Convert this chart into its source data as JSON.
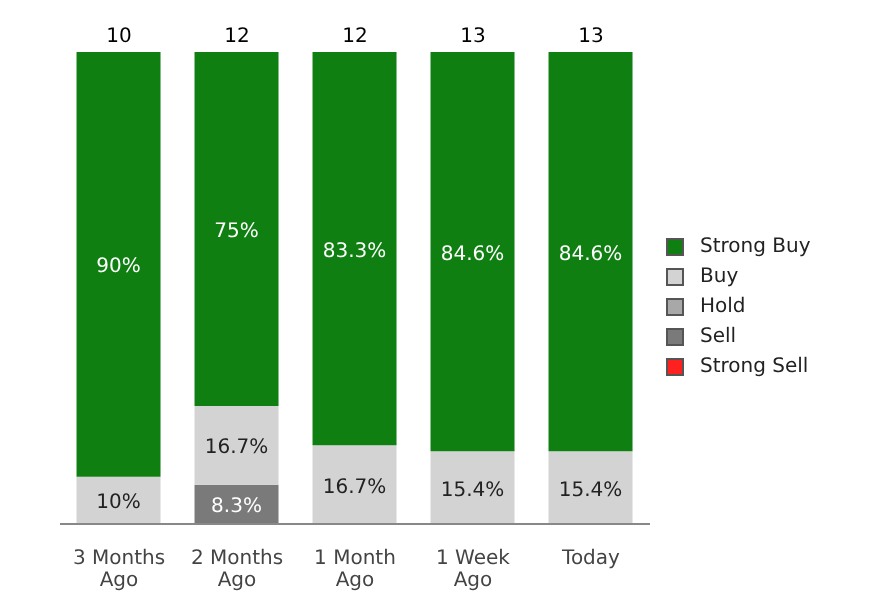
{
  "chart_data": {
    "type": "bar",
    "stacked": true,
    "categories": [
      "3 Months Ago",
      "2 Months Ago",
      "1 Month Ago",
      "1 Week Ago",
      "Today"
    ],
    "series": [
      {
        "name": "Strong Sell",
        "color": "#ff2020",
        "values": [
          null,
          null,
          null,
          null,
          null
        ]
      },
      {
        "name": "Sell",
        "color": "#7a7a7a",
        "values": [
          null,
          8.3,
          null,
          null,
          null
        ],
        "value_labels": [
          null,
          "8.3%",
          null,
          null,
          null
        ]
      },
      {
        "name": "Hold",
        "color": "#a8a8a8",
        "values": [
          null,
          null,
          null,
          null,
          null
        ]
      },
      {
        "name": "Buy",
        "color": "#d3d3d3",
        "values": [
          10,
          16.7,
          16.7,
          15.4,
          15.4
        ],
        "value_labels": [
          "10%",
          "16.7%",
          "16.7%",
          "15.4%",
          "15.4%"
        ]
      },
      {
        "name": "Strong Buy",
        "color": "#0f7f12",
        "values": [
          90,
          75,
          83.3,
          84.6,
          84.6
        ],
        "value_labels": [
          "90%",
          "75%",
          "83.3%",
          "84.6%",
          "84.6%"
        ]
      }
    ],
    "annotations": [
      {
        "text": "10",
        "x": "3 Months Ago",
        "y": 100
      },
      {
        "text": "12",
        "x": "2 Months Ago",
        "y": 100
      },
      {
        "text": "12",
        "x": "1 Month Ago",
        "y": 100
      },
      {
        "text": "13",
        "x": "1 Week Ago",
        "y": 100
      },
      {
        "text": "13",
        "x": "Today",
        "y": 100
      }
    ],
    "legend": "right"
  }
}
